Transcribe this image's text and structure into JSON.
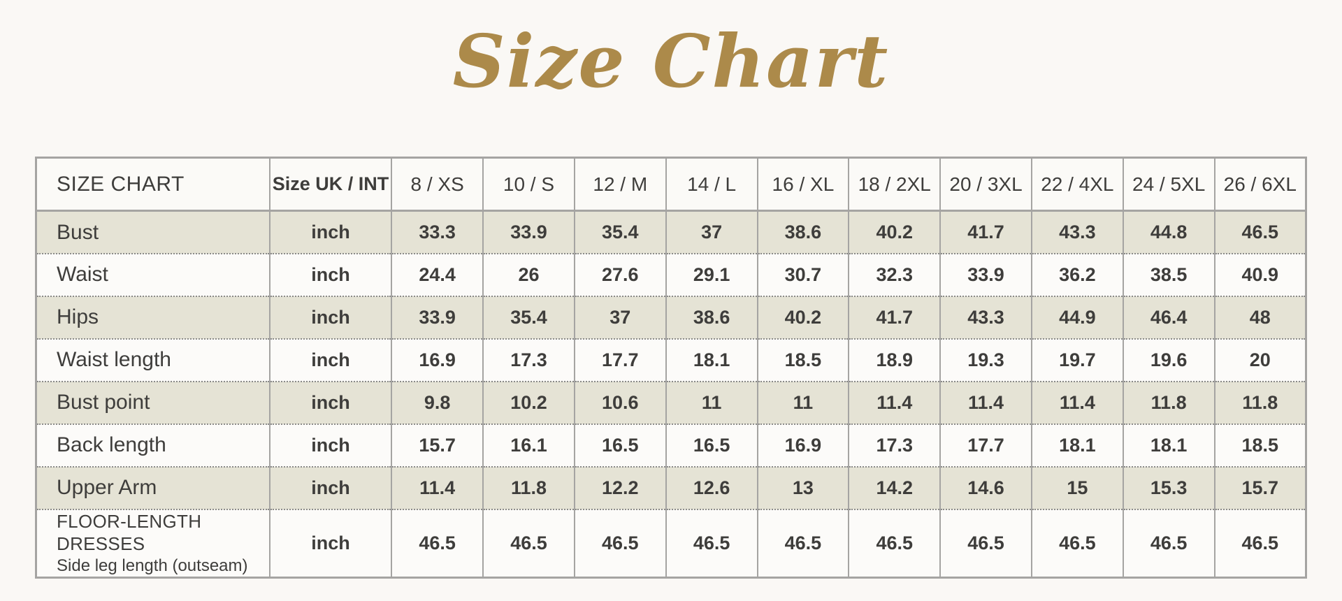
{
  "page": {
    "title": "Size Chart"
  },
  "colors": {
    "title_gold": "#ac8a4a",
    "row_stripe": "#e5e3d5",
    "table_border": "#a5a4a2",
    "text": "#3e3d3b",
    "background": "#faf8f5"
  },
  "chart_data": {
    "type": "table",
    "title": "Size Chart",
    "corner_label": "SIZE CHART",
    "unit_column_header": "Size UK / INT",
    "columns": [
      "8 / XS",
      "10 / S",
      "12 / M",
      "14 / L",
      "16 / XL",
      "18 / 2XL",
      "20 / 3XL",
      "22 / 4XL",
      "24 / 5XL",
      "26 / 6XL"
    ],
    "rows": [
      {
        "label": "Bust",
        "unit": "inch",
        "values": [
          "33.3",
          "33.9",
          "35.4",
          "37",
          "38.6",
          "40.2",
          "41.7",
          "43.3",
          "44.8",
          "46.5"
        ]
      },
      {
        "label": "Waist",
        "unit": "inch",
        "values": [
          "24.4",
          "26",
          "27.6",
          "29.1",
          "30.7",
          "32.3",
          "33.9",
          "36.2",
          "38.5",
          "40.9"
        ]
      },
      {
        "label": "Hips",
        "unit": "inch",
        "values": [
          "33.9",
          "35.4",
          "37",
          "38.6",
          "40.2",
          "41.7",
          "43.3",
          "44.9",
          "46.4",
          "48"
        ]
      },
      {
        "label": "Waist length",
        "unit": "inch",
        "values": [
          "16.9",
          "17.3",
          "17.7",
          "18.1",
          "18.5",
          "18.9",
          "19.3",
          "19.7",
          "19.6",
          "20"
        ]
      },
      {
        "label": "Bust point",
        "unit": "inch",
        "values": [
          "9.8",
          "10.2",
          "10.6",
          "11",
          "11",
          "11.4",
          "11.4",
          "11.4",
          "11.8",
          "11.8"
        ]
      },
      {
        "label": "Back length",
        "unit": "inch",
        "values": [
          "15.7",
          "16.1",
          "16.5",
          "16.5",
          "16.9",
          "17.3",
          "17.7",
          "18.1",
          "18.1",
          "18.5"
        ]
      },
      {
        "label": "Upper Arm",
        "unit": "inch",
        "values": [
          "11.4",
          "11.8",
          "12.2",
          "12.6",
          "13",
          "14.2",
          "14.6",
          "15",
          "15.3",
          "15.7"
        ]
      },
      {
        "label": "FLOOR-LENGTH DRESSES",
        "sublabel": "Side leg length (outseam)",
        "unit": "inch",
        "values": [
          "46.5",
          "46.5",
          "46.5",
          "46.5",
          "46.5",
          "46.5",
          "46.5",
          "46.5",
          "46.5",
          "46.5"
        ]
      }
    ]
  }
}
